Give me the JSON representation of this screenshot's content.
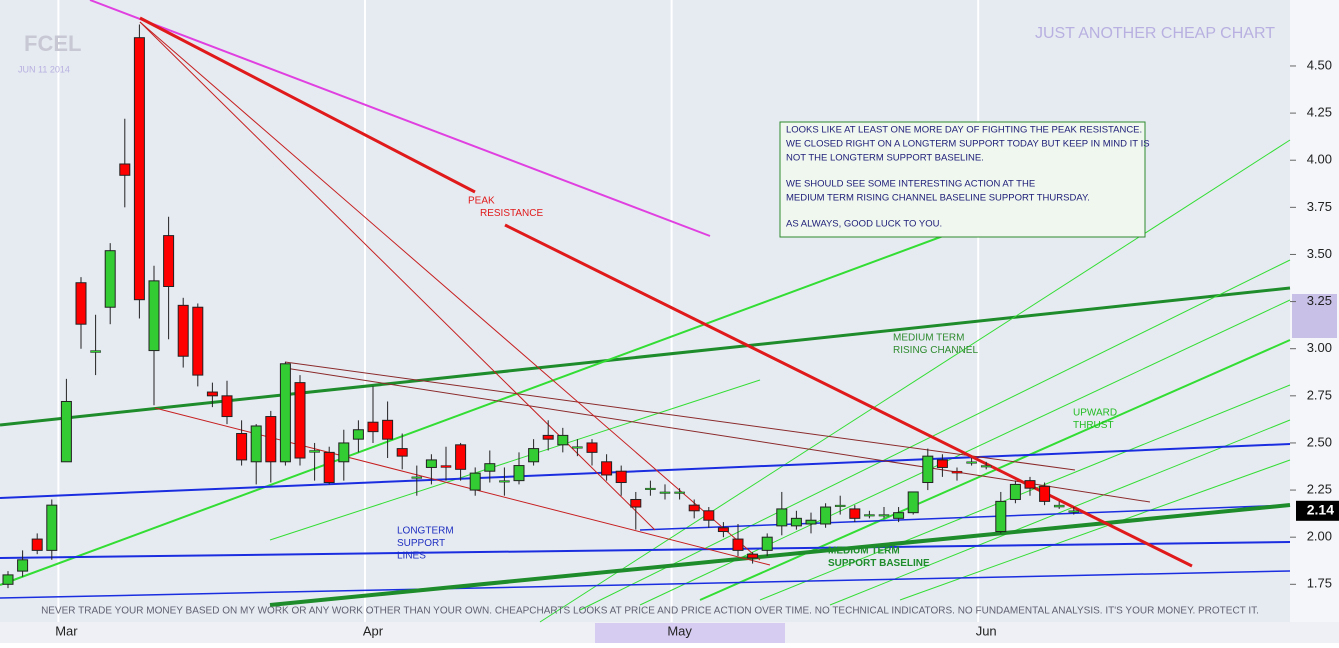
{
  "chart_data": {
    "type": "candlestick",
    "title": "FCEL",
    "subtitle": "JUN 11 2014",
    "brand": "JUST ANOTHER CHEAP CHART",
    "categories": [
      null,
      null,
      null,
      null,
      "Mar",
      null,
      null,
      null,
      null,
      null,
      null,
      null,
      null,
      null,
      null,
      null,
      null,
      null,
      null,
      null,
      null,
      null,
      null,
      null,
      null,
      "Apr",
      null,
      null,
      null,
      null,
      null,
      null,
      null,
      null,
      null,
      null,
      null,
      null,
      null,
      null,
      null,
      null,
      null,
      null,
      null,
      null,
      "May",
      null,
      null,
      null,
      null,
      null,
      null,
      null,
      null,
      null,
      null,
      null,
      null,
      null,
      null,
      null,
      null,
      null,
      null,
      null,
      null,
      "Jun",
      null,
      null,
      null,
      null,
      null,
      null
    ],
    "open": [
      1.75,
      1.82,
      1.99,
      1.93,
      2.4,
      3.35,
      2.98,
      3.22,
      3.98,
      4.65,
      2.99,
      3.6,
      3.23,
      3.22,
      2.77,
      2.75,
      2.55,
      2.4,
      2.64,
      2.4,
      2.82,
      2.45,
      2.45,
      2.4,
      2.52,
      2.61,
      2.62,
      2.47,
      2.32,
      2.37,
      2.38,
      2.49,
      2.25,
      2.35,
      2.3,
      2.3,
      2.4,
      2.54,
      2.49,
      2.48,
      2.5,
      2.4,
      2.35,
      2.2,
      2.26,
      2.24,
      2.24,
      2.17,
      2.14,
      2.05,
      1.99,
      1.91,
      1.93,
      2.06,
      2.06,
      2.07,
      2.07,
      2.17,
      2.15,
      2.12,
      2.12,
      2.1,
      2.13,
      2.29,
      2.41,
      2.35,
      2.4,
      2.38,
      2.03,
      2.2,
      2.3,
      2.27,
      2.16,
      2.14
    ],
    "high": [
      1.82,
      1.93,
      2.02,
      2.2,
      2.84,
      3.38,
      3.18,
      3.56,
      4.22,
      4.72,
      3.44,
      3.7,
      3.27,
      3.24,
      2.82,
      2.83,
      2.62,
      2.6,
      2.67,
      2.93,
      2.86,
      2.5,
      2.48,
      2.57,
      2.62,
      2.8,
      2.72,
      2.55,
      2.38,
      2.44,
      2.48,
      2.5,
      2.37,
      2.46,
      2.37,
      2.45,
      2.52,
      2.62,
      2.58,
      2.52,
      2.52,
      2.44,
      2.38,
      2.24,
      2.3,
      2.28,
      2.26,
      2.2,
      2.16,
      2.08,
      2.07,
      1.92,
      2.02,
      2.24,
      2.14,
      2.13,
      2.18,
      2.22,
      2.17,
      2.14,
      2.16,
      2.16,
      2.24,
      2.47,
      2.44,
      2.37,
      2.42,
      2.4,
      2.24,
      2.3,
      2.32,
      2.29,
      2.19,
      2.16
    ],
    "low": [
      1.73,
      1.79,
      1.91,
      1.88,
      2.4,
      3.0,
      2.86,
      3.13,
      3.75,
      3.16,
      2.7,
      3.05,
      2.9,
      2.8,
      2.69,
      2.6,
      2.38,
      2.28,
      2.29,
      2.38,
      2.38,
      2.3,
      2.28,
      2.3,
      2.45,
      2.5,
      2.42,
      2.36,
      2.22,
      2.28,
      2.3,
      2.3,
      2.22,
      2.29,
      2.22,
      2.28,
      2.38,
      2.46,
      2.45,
      2.43,
      2.38,
      2.3,
      2.22,
      2.04,
      2.22,
      2.2,
      2.2,
      2.1,
      2.05,
      2.0,
      1.9,
      1.86,
      1.9,
      2.01,
      2.04,
      2.02,
      2.05,
      2.12,
      2.08,
      2.1,
      2.1,
      2.08,
      2.12,
      2.25,
      2.32,
      2.3,
      2.38,
      2.36,
      2.02,
      2.18,
      2.22,
      2.17,
      2.15,
      2.12
    ],
    "close": [
      1.8,
      1.88,
      1.93,
      2.17,
      2.72,
      3.13,
      2.99,
      3.52,
      3.92,
      3.26,
      3.36,
      3.33,
      2.96,
      2.86,
      2.75,
      2.64,
      2.41,
      2.59,
      2.4,
      2.92,
      2.42,
      2.46,
      2.29,
      2.5,
      2.57,
      2.56,
      2.52,
      2.43,
      2.32,
      2.41,
      2.37,
      2.36,
      2.34,
      2.39,
      2.3,
      2.38,
      2.47,
      2.52,
      2.54,
      2.48,
      2.45,
      2.33,
      2.29,
      2.16,
      2.26,
      2.24,
      2.24,
      2.14,
      2.09,
      2.03,
      1.93,
      1.89,
      2.0,
      2.15,
      2.1,
      2.09,
      2.16,
      2.17,
      2.1,
      2.12,
      2.12,
      2.13,
      2.24,
      2.43,
      2.37,
      2.34,
      2.4,
      2.38,
      2.19,
      2.28,
      2.26,
      2.19,
      2.17,
      2.14
    ],
    "up_color": "#33cc33",
    "down_color": "#ff0000",
    "ylim": [
      1.55,
      4.85
    ],
    "yticks": [
      1.75,
      {
        "value": 2.0,
        "label": "2.00"
      },
      2.25,
      {
        "value": 2.5,
        "label": "2.50"
      },
      2.75,
      {
        "value": 3.0,
        "label": "3.00"
      },
      3.25,
      {
        "value": 3.5,
        "label": "3.50"
      },
      3.75,
      {
        "value": 4.0,
        "label": "4.00"
      },
      4.25,
      {
        "value": 4.5,
        "label": "4.50"
      }
    ],
    "last_price": 2.14,
    "grid": true,
    "annotations": {
      "peak": [
        "PEAK",
        "RESISTANCE"
      ],
      "rising": [
        "MEDIUM TERM",
        "RISING CHANNEL"
      ],
      "thrust": [
        "UPWARD",
        "THRUST"
      ],
      "longterm": [
        "LONGTERM",
        "SUPPORT",
        "LINES"
      ],
      "baseline": [
        "MEDIUM TERM",
        "SUPPORT BASELINE"
      ]
    },
    "note": [
      [
        "LOOKS LIKE AT LEAST ONE MORE DAY OF FIGHTING THE PEAK RESISTANCE.",
        "WE CLOSED RIGHT ON A LONGTERM SUPPORT TODAY BUT KEEP IN MIND IT IS",
        "NOT THE LONGTERM SUPPORT BASELINE."
      ],
      [
        "WE SHOULD SEE SOME INTERESTING ACTION AT THE",
        "MEDIUM TERM RISING CHANNEL BASELINE SUPPORT THURSDAY."
      ],
      [
        "AS ALWAYS, GOOD LUCK TO YOU."
      ]
    ],
    "disclaimer": "NEVER TRADE YOUR MONEY BASED ON MY WORK OR ANY WORK OTHER THAN YOUR OWN. CHEAPCHARTS LOOKS AT PRICE AND PRICE ACTION OVER TIME. NO TECHNICAL INDICATORS. NO FUNDAMENTAL ANALYSIS. IT'S YOUR MONEY. PROTECT IT."
  }
}
